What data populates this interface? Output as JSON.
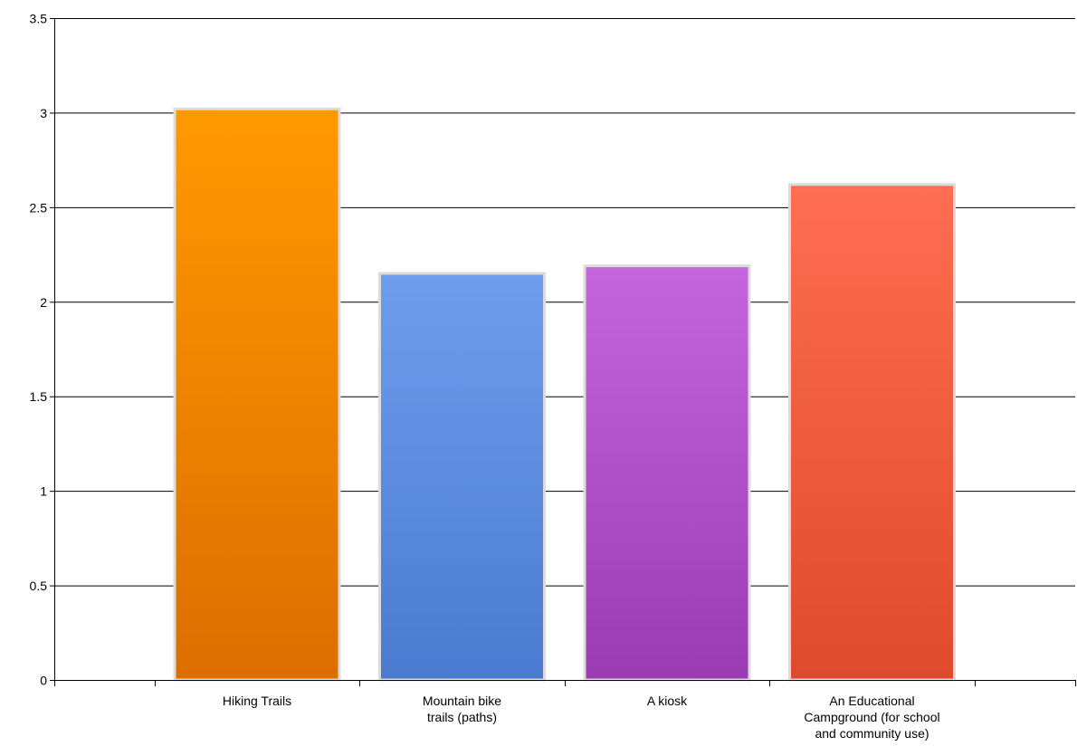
{
  "chart_data": {
    "type": "bar",
    "title": "",
    "xlabel": "",
    "ylabel": "",
    "ylim": [
      0,
      3.5
    ],
    "yticks": [
      0,
      0.5,
      1,
      1.5,
      2,
      2.5,
      3,
      3.5
    ],
    "ytick_labels": [
      "0",
      "0.5",
      "1",
      "1.5",
      "2",
      "2.5",
      "3",
      "3.5"
    ],
    "grid": true,
    "legend": "none",
    "categories": [
      [
        "Hiking Trails"
      ],
      [
        "Mountain bike",
        "trails (paths)"
      ],
      [
        "A kiosk"
      ],
      [
        "An Educational",
        "Campground (for school",
        "and community use)"
      ]
    ],
    "values": [
      3.02,
      2.15,
      2.19,
      2.62
    ],
    "colors": [
      {
        "top": "#ff9900",
        "bottom": "#dc6e00"
      },
      {
        "top": "#6f9ded",
        "bottom": "#4a7bd0"
      },
      {
        "top": "#c566de",
        "bottom": "#9a3bb4"
      },
      {
        "top": "#ff6e52",
        "bottom": "#de4a2d"
      }
    ],
    "bar_border_color": "#dcdcdc",
    "axis_color": "#000000",
    "grid_color": "#000000"
  }
}
